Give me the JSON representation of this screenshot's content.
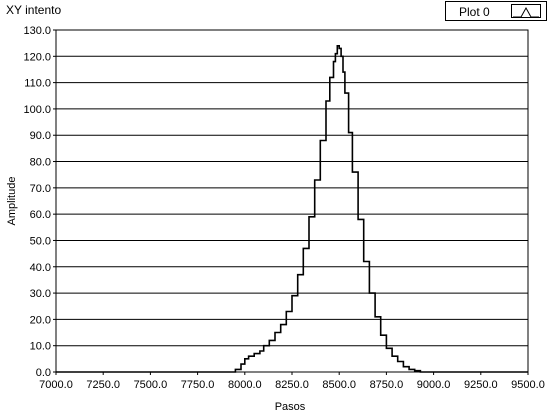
{
  "chart_data": {
    "type": "line",
    "title": "XY intento",
    "xlabel": "Pasos",
    "ylabel": "Amplitude",
    "xlim": [
      7000,
      9500
    ],
    "ylim": [
      0,
      130
    ],
    "x_ticks": [
      "7000.0",
      "7250.0",
      "7500.0",
      "7750.0",
      "8000.0",
      "8250.0",
      "8500.0",
      "8750.0",
      "9000.0",
      "9250.0",
      "9500.0"
    ],
    "y_ticks": [
      "0.0",
      "10.0",
      "20.0",
      "30.0",
      "40.0",
      "50.0",
      "60.0",
      "70.0",
      "80.0",
      "90.0",
      "100.0",
      "110.0",
      "120.0",
      "130.0"
    ],
    "grid": "horizontal",
    "legend_position": "top-right",
    "series": [
      {
        "name": "Plot 0",
        "color": "#000000",
        "x": [
          7000,
          7900,
          7950,
          7980,
          8000,
          8020,
          8050,
          8080,
          8100,
          8130,
          8160,
          8190,
          8220,
          8250,
          8280,
          8310,
          8340,
          8370,
          8400,
          8430,
          8450,
          8470,
          8480,
          8490,
          8500,
          8510,
          8520,
          8530,
          8550,
          8570,
          8600,
          8630,
          8660,
          8690,
          8720,
          8750,
          8780,
          8810,
          8840,
          8870,
          8900,
          8930,
          9500
        ],
        "y": [
          0,
          0,
          1,
          3,
          5,
          6,
          7,
          8,
          10,
          12,
          15,
          18,
          23,
          29,
          37,
          47,
          59,
          73,
          88,
          103,
          112,
          118,
          121,
          124,
          123,
          120,
          114,
          106,
          91,
          76,
          58,
          42,
          30,
          21,
          14,
          9,
          6,
          4,
          2,
          1,
          0.5,
          0,
          0
        ]
      }
    ]
  }
}
